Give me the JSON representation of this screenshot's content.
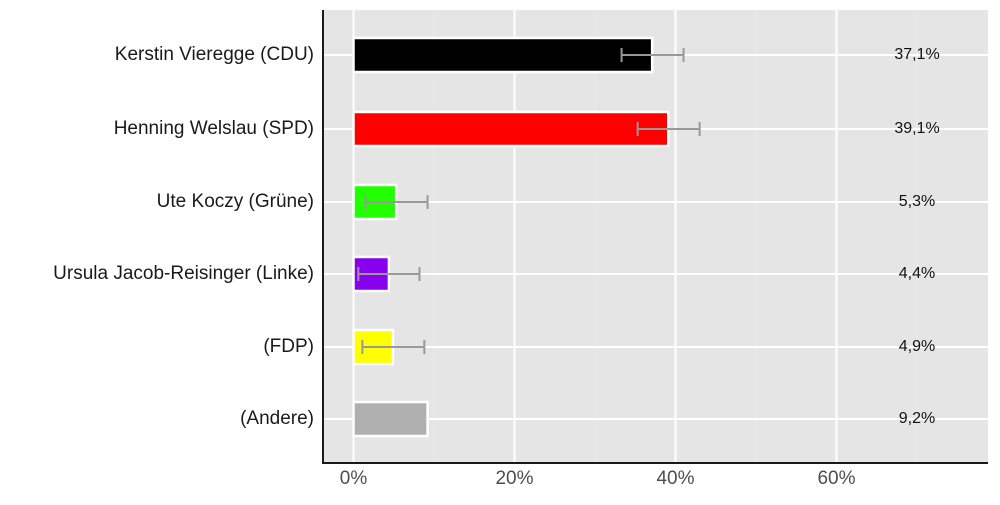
{
  "chart_data": {
    "type": "bar",
    "orientation": "horizontal",
    "title": "",
    "xlabel": "",
    "ylabel": "",
    "xlim": [
      -4,
      79
    ],
    "x_ticks": [
      "0%",
      "20%",
      "40%",
      "60%"
    ],
    "x_tick_values": [
      0,
      20,
      40,
      60
    ],
    "grid": true,
    "legend": null,
    "categories": [
      "Kerstin Vieregge (CDU)",
      "Henning Welslau (SPD)",
      "Ute Koczy (Grüne)",
      "Ursula Jacob-Reisinger (Linke)",
      "(FDP)",
      "(Andere)"
    ],
    "values": [
      37.1,
      39.1,
      5.3,
      4.4,
      4.9,
      9.2
    ],
    "value_labels": [
      "37,1%",
      "39,1%",
      "5,3%",
      "4,4%",
      "4,9%",
      "9,2%"
    ],
    "error_bars": [
      {
        "low": 33.3,
        "high": 41.0
      },
      {
        "low": 35.3,
        "high": 43.0
      },
      {
        "low": 1.5,
        "high": 9.2
      },
      {
        "low": 0.6,
        "high": 8.2
      },
      {
        "low": 1.1,
        "high": 8.8
      },
      null
    ],
    "colors": [
      "#000000",
      "#ff0000",
      "#22ff00",
      "#8800ee",
      "#ffff00",
      "#b0b0b0"
    ]
  }
}
